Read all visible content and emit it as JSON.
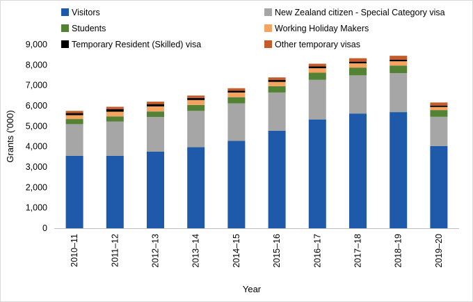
{
  "chart_data": {
    "type": "bar",
    "stacked": true,
    "title": "",
    "xlabel": "Year",
    "ylabel": "Grants ('000)",
    "ylim": [
      0,
      9000
    ],
    "yticks": [
      0,
      1000,
      2000,
      3000,
      4000,
      5000,
      6000,
      7000,
      8000,
      9000
    ],
    "ytick_labels": [
      "0",
      "1,000",
      "2,000",
      "3,000",
      "4,000",
      "5,000",
      "6,000",
      "7,000",
      "8,000",
      "9,000"
    ],
    "grid": false,
    "legend_position": "top",
    "categories": [
      "2010–11",
      "2011–12",
      "2012–13",
      "2013–14",
      "2014–15",
      "2015–16",
      "2016–17",
      "2017–18",
      "2018–19",
      "2019–20"
    ],
    "series": [
      {
        "name": "Visitors",
        "color": "#1F5AAA",
        "values": [
          3550,
          3550,
          3750,
          3970,
          4280,
          4780,
          5330,
          5620,
          5690,
          4030
        ]
      },
      {
        "name": "New Zealand citizen - Special Category visa",
        "color": "#A6A6A6",
        "values": [
          1550,
          1680,
          1700,
          1780,
          1840,
          1870,
          1940,
          1870,
          1910,
          1430
        ]
      },
      {
        "name": "Students",
        "color": "#548235",
        "values": [
          250,
          250,
          270,
          290,
          300,
          310,
          350,
          380,
          370,
          330
        ]
      },
      {
        "name": "Working Holiday Makers",
        "color": "#F4A460",
        "values": [
          190,
          230,
          250,
          240,
          230,
          210,
          220,
          210,
          210,
          150
        ]
      },
      {
        "name": "Temporary Resident (Skilled) visa",
        "color": "#000000",
        "values": [
          100,
          120,
          110,
          100,
          90,
          90,
          90,
          80,
          80,
          70
        ]
      },
      {
        "name": "Other temporary visas",
        "color": "#C55A2B",
        "values": [
          110,
          120,
          120,
          120,
          120,
          130,
          130,
          170,
          190,
          150
        ]
      }
    ]
  }
}
